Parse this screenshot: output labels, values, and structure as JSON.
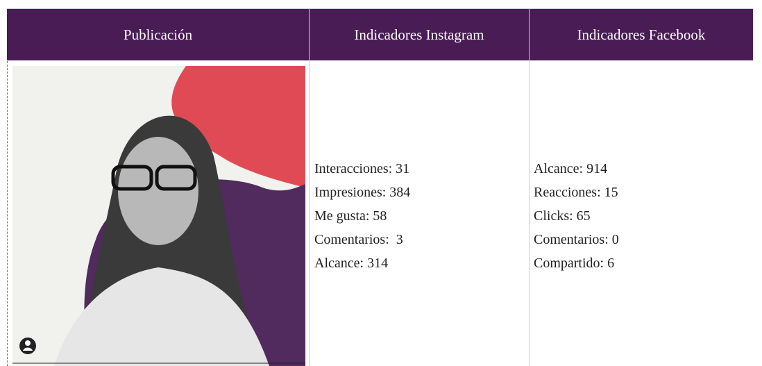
{
  "table": {
    "header": [
      "Publicación",
      "Indicadores Instagram",
      "Indicadores Facebook"
    ],
    "instagram": [
      "Interacciones: 31",
      "Impresiones: 384",
      "Me gusta: 58",
      "Comentarios:  3",
      "Alcance: 314"
    ],
    "facebook": [
      "Alcance: 914",
      "Reacciones: 15",
      "Clicks: 65",
      "Comentarios: 0",
      "Compartido: 6"
    ]
  }
}
